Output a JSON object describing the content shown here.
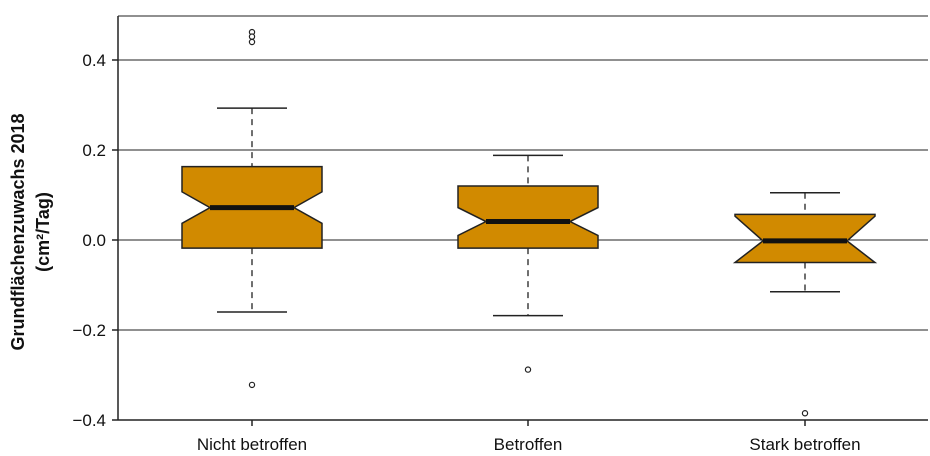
{
  "chart_data": {
    "type": "boxplot",
    "title": "",
    "ylabel_line1": "Grundflächenzuwachs 2018",
    "ylabel_line2": "(cm²/Tag)",
    "xlabel": "",
    "ylim": [
      -0.4,
      0.48
    ],
    "yticks": [
      0.4,
      0.2,
      0.0,
      -0.2,
      -0.4
    ],
    "ytick_labels": [
      "0.4",
      "0.2",
      "0.0",
      "−0.2",
      "−0.4"
    ],
    "grid": "horizontal",
    "box_color": "#d18a00",
    "categories": [
      "Nicht betroffen",
      "Betroffen",
      "Stark betroffen"
    ],
    "boxes": [
      {
        "whisker_low": -0.16,
        "q1": -0.018,
        "median": 0.072,
        "q3": 0.163,
        "whisker_high": 0.293,
        "notch_low": 0.037,
        "notch_high": 0.107,
        "outliers": [
          0.462,
          0.452,
          0.44,
          -0.322
        ]
      },
      {
        "whisker_low": -0.168,
        "q1": -0.018,
        "median": 0.041,
        "q3": 0.12,
        "whisker_high": 0.188,
        "notch_low": 0.01,
        "notch_high": 0.072,
        "outliers": [
          -0.288
        ]
      },
      {
        "whisker_low": -0.115,
        "q1": -0.05,
        "median": -0.002,
        "q3": 0.057,
        "whisker_high": 0.105,
        "notch_low": -0.057,
        "notch_high": 0.053,
        "outliers": [
          -0.385
        ]
      }
    ]
  }
}
